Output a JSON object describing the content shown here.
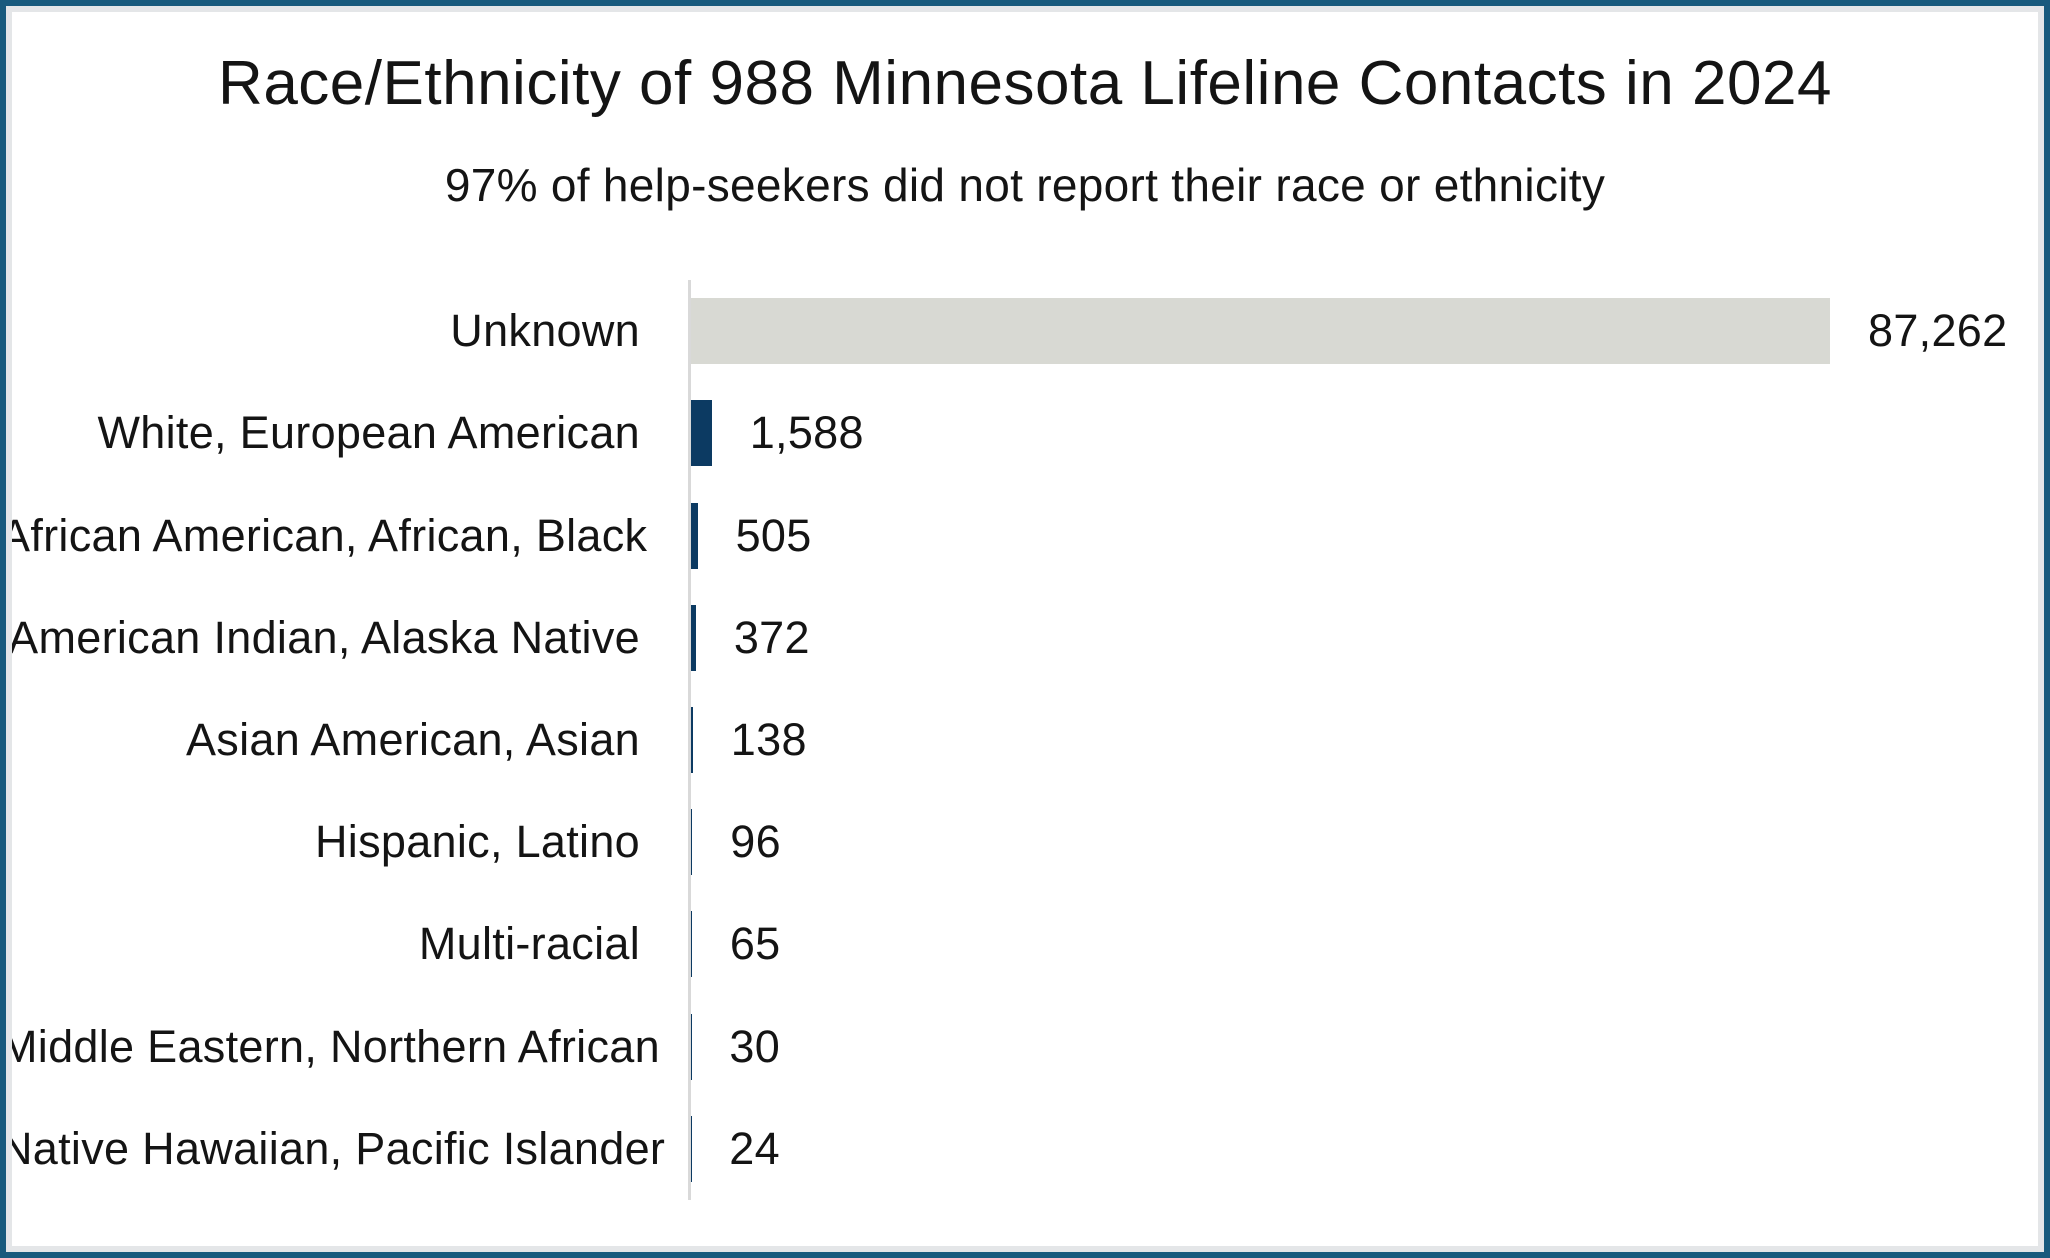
{
  "frame": {
    "outer_border_color": "#185a7d",
    "inner_border_color": "#e4e6e8"
  },
  "chart_data": {
    "type": "bar",
    "orientation": "horizontal",
    "title": "Race/Ethnicity of 988 Minnesota Lifeline Contacts in 2024",
    "subtitle": "97% of help-seekers did not report their race or ethnicity",
    "categories": [
      "Unknown",
      "White, European American",
      "African American, African, Black",
      "American Indian, Alaska Native",
      "Asian American, Asian",
      "Hispanic, Latino",
      "Multi-racial",
      "Middle Eastern, Northern African",
      "Native Hawaiian, Pacific Islander"
    ],
    "values": [
      87262,
      1588,
      505,
      372,
      138,
      96,
      65,
      30,
      24
    ],
    "value_labels": [
      "87,262",
      "1,588",
      "505",
      "372",
      "138",
      "96",
      "65",
      "30",
      "24"
    ],
    "xlim": [
      0,
      87262
    ],
    "grid": false,
    "legend": false,
    "axis_color": "#d9d9d9",
    "bar_color_default": "#0c3a62",
    "bar_color_unknown": "#d8d9d3",
    "text_color": "#141414"
  }
}
